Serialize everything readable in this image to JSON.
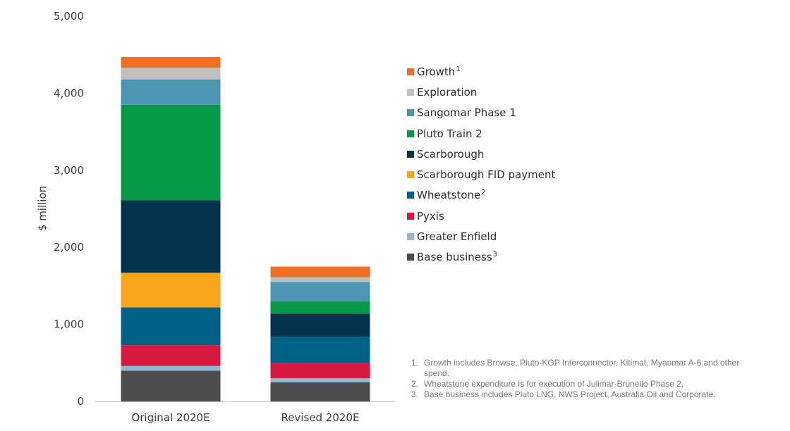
{
  "chart_data": {
    "type": "bar",
    "stacked": true,
    "ylabel": "$ million",
    "ylim": [
      0,
      5000
    ],
    "yticks": [
      "0",
      "1,000",
      "2,000",
      "3,000",
      "4,000",
      "5,000"
    ],
    "grid": false,
    "legend_position": "right",
    "categories": [
      "Original 2020E",
      "Revised 2020E"
    ],
    "series": [
      {
        "name": "Base business",
        "footnote": "3",
        "color": "#4d4d4f",
        "values": [
          400,
          250
        ]
      },
      {
        "name": "Greater Enfield",
        "footnote": "",
        "color": "#8fb9d6",
        "values": [
          60,
          50
        ]
      },
      {
        "name": "Pyxis",
        "footnote": "",
        "color": "#d7193f",
        "values": [
          270,
          200
        ]
      },
      {
        "name": "Wheatstone",
        "footnote": "2",
        "color": "#006187",
        "values": [
          490,
          340
        ]
      },
      {
        "name": "Scarborough FID payment",
        "footnote": "",
        "color": "#f9a61c",
        "values": [
          450,
          0
        ]
      },
      {
        "name": "Scarborough",
        "footnote": "",
        "color": "#02324c",
        "values": [
          940,
          300
        ]
      },
      {
        "name": "Pluto Train 2",
        "footnote": "",
        "color": "#079848",
        "values": [
          1240,
          160
        ]
      },
      {
        "name": "Sangomar Phase 1",
        "footnote": "",
        "color": "#4d96b3",
        "values": [
          330,
          250
        ]
      },
      {
        "name": "Exploration",
        "footnote": "",
        "color": "#c0c0c0",
        "values": [
          150,
          60
        ]
      },
      {
        "name": "Growth",
        "footnote": "1",
        "color": "#ef7024",
        "values": [
          140,
          140
        ]
      }
    ]
  },
  "footnotes": [
    {
      "num": "1.",
      "text": "Growth includes Browse, Pluto-KGP Interconnector, Kitimat, Myanmar A-6 and other spend."
    },
    {
      "num": "2.",
      "text": "Wheatstone expenditure is for execution of Julimar-Brunello Phase 2."
    },
    {
      "num": "3.",
      "text": "Base business includes Pluto LNG, NWS Project, Australia Oil and Corporate."
    }
  ]
}
